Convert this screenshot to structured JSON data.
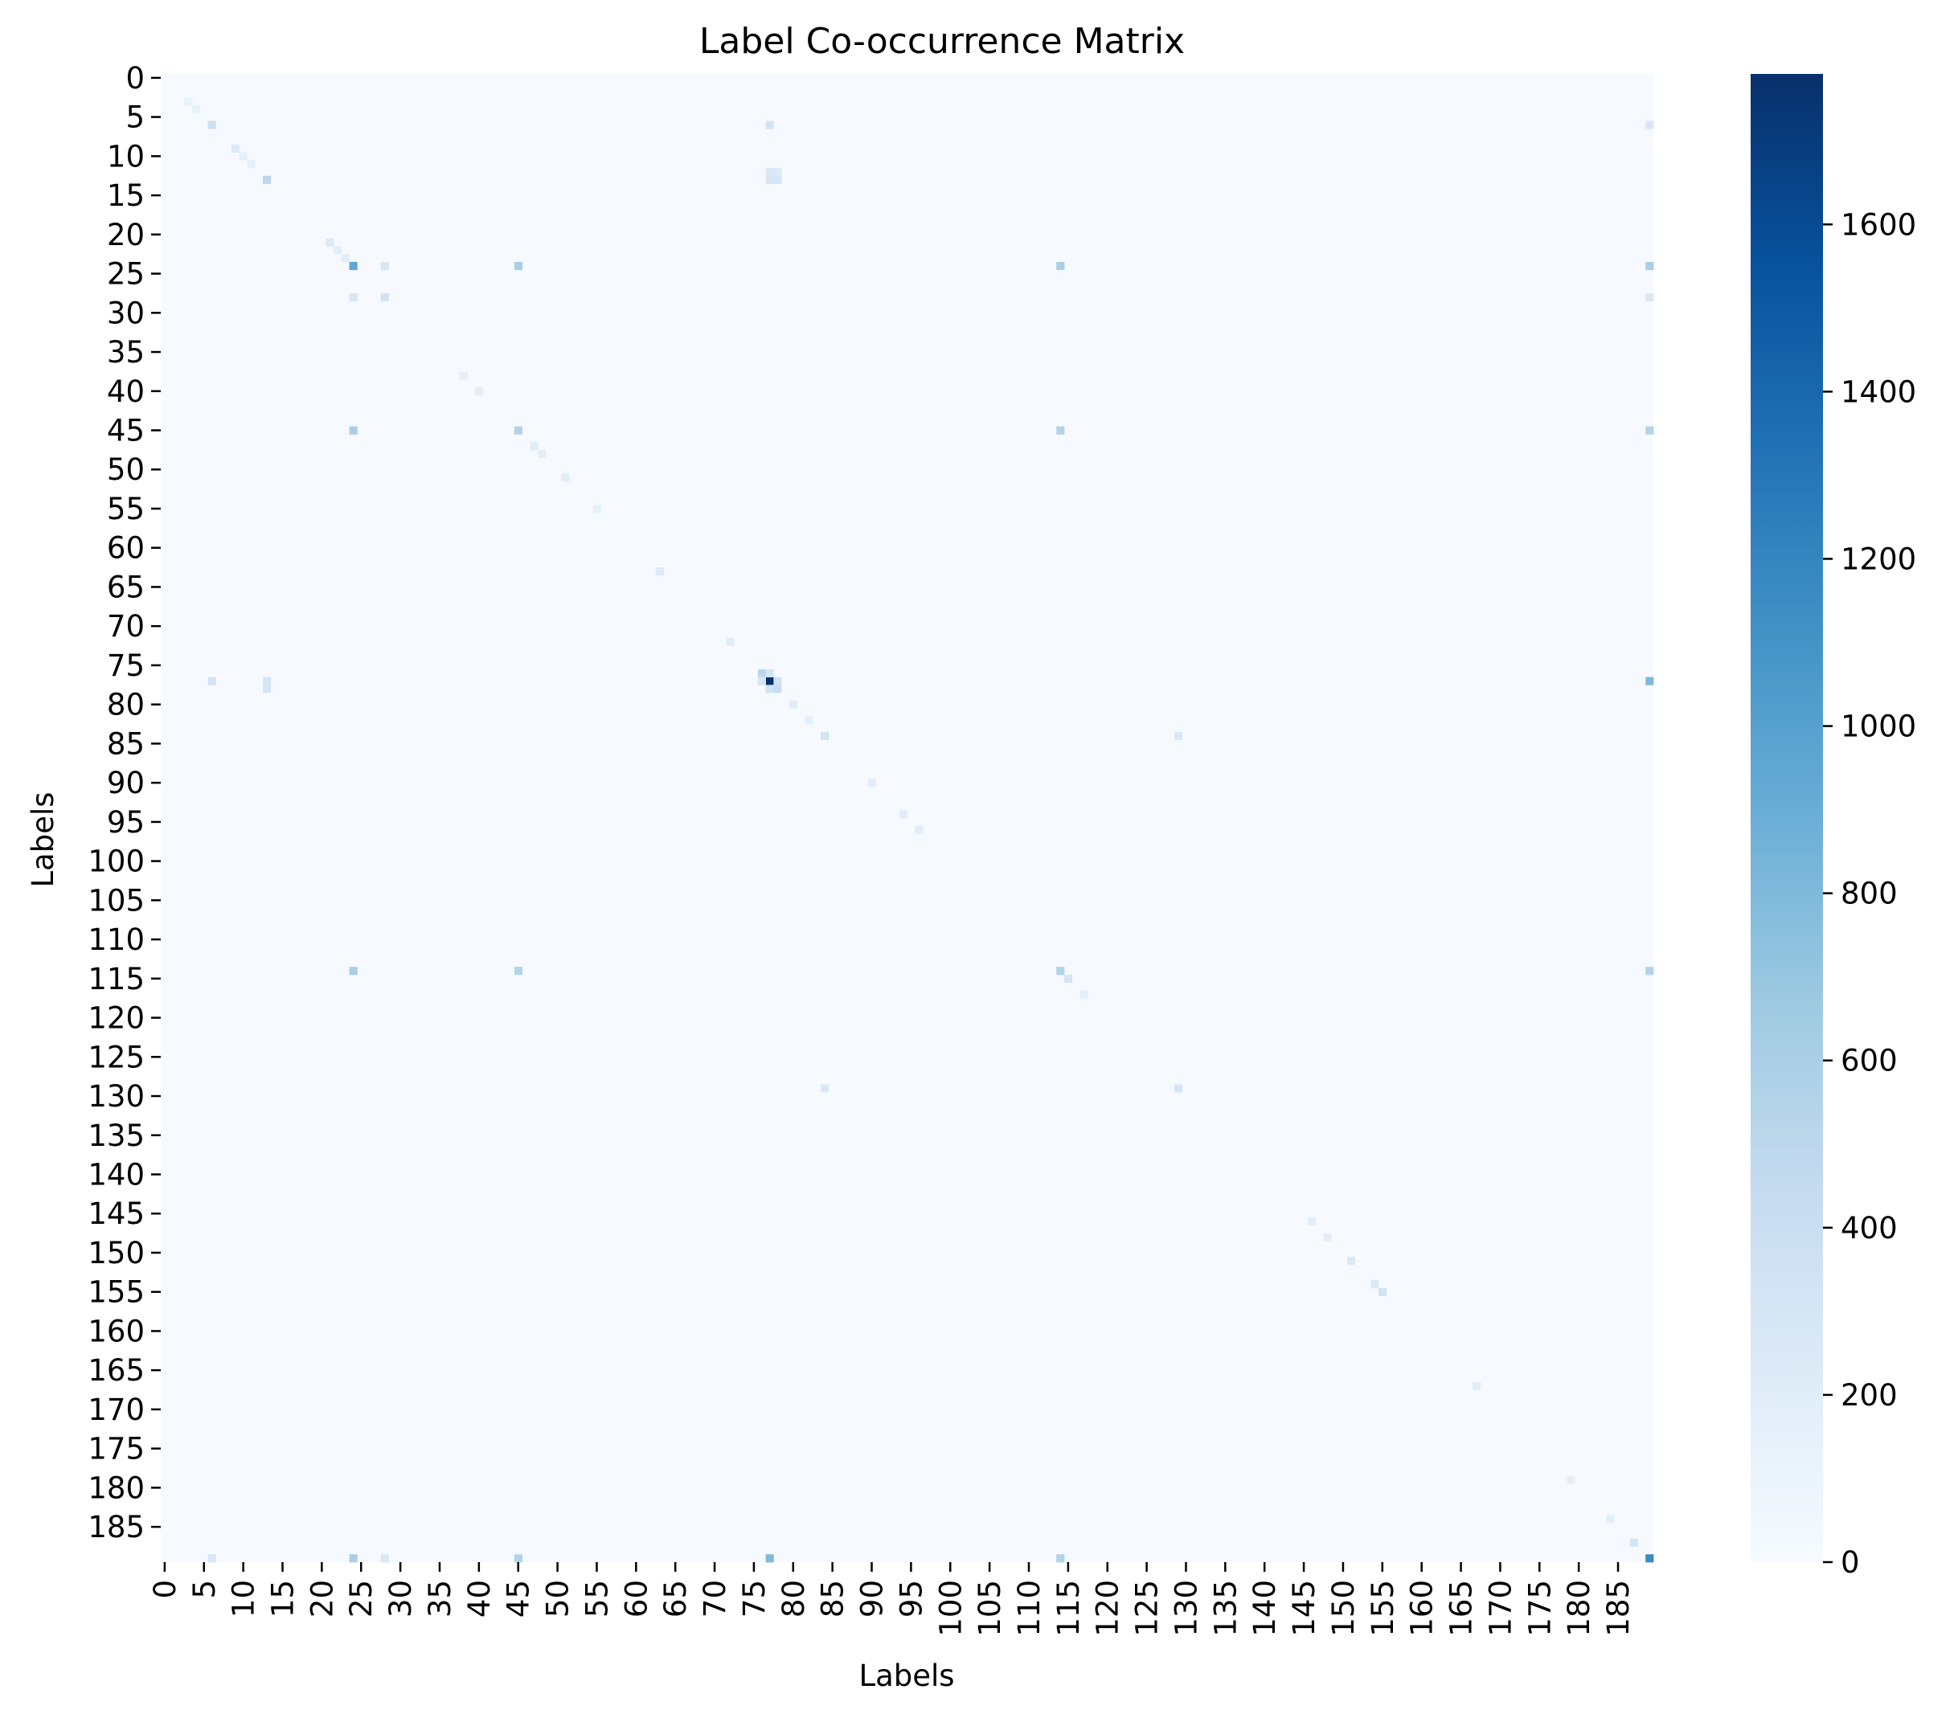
{
  "chart_data": {
    "type": "heatmap",
    "title": "Label Co-occurrence Matrix",
    "xlabel": "Labels",
    "ylabel": "Labels",
    "n_labels": 190,
    "tick_step": 5,
    "x_tick_labels": [
      "0",
      "5",
      "10",
      "15",
      "20",
      "25",
      "30",
      "35",
      "40",
      "45",
      "50",
      "55",
      "60",
      "65",
      "70",
      "75",
      "80",
      "85",
      "90",
      "95",
      "100",
      "105",
      "110",
      "115",
      "120",
      "125",
      "130",
      "135",
      "140",
      "145",
      "150",
      "155",
      "160",
      "165",
      "170",
      "175",
      "180",
      "185"
    ],
    "y_tick_labels": [
      "0",
      "5",
      "10",
      "15",
      "20",
      "25",
      "30",
      "35",
      "40",
      "45",
      "50",
      "55",
      "60",
      "65",
      "70",
      "75",
      "80",
      "85",
      "90",
      "95",
      "100",
      "105",
      "110",
      "115",
      "120",
      "125",
      "130",
      "135",
      "140",
      "145",
      "150",
      "155",
      "160",
      "165",
      "170",
      "175",
      "180",
      "185"
    ],
    "colormap": "Blues",
    "colormap_stops": [
      "#f7fbff",
      "#deebf7",
      "#c6dbef",
      "#9ecae1",
      "#6baed6",
      "#4292c6",
      "#2171b5",
      "#08519c",
      "#08306b"
    ],
    "colorbar": {
      "min": 0,
      "max": 1780,
      "ticks": [
        0,
        200,
        400,
        600,
        800,
        1000,
        1200,
        1400,
        1600
      ]
    },
    "background_value": 8,
    "cells": [
      {
        "row": 77,
        "col": 77,
        "value": 1780
      },
      {
        "row": 189,
        "col": 189,
        "value": 1150
      },
      {
        "row": 24,
        "col": 24,
        "value": 950
      },
      {
        "row": 77,
        "col": 189,
        "value": 800
      },
      {
        "row": 189,
        "col": 77,
        "value": 800
      },
      {
        "row": 24,
        "col": 45,
        "value": 600
      },
      {
        "row": 45,
        "col": 24,
        "value": 600
      },
      {
        "row": 24,
        "col": 114,
        "value": 600
      },
      {
        "row": 114,
        "col": 24,
        "value": 600
      },
      {
        "row": 24,
        "col": 189,
        "value": 600
      },
      {
        "row": 189,
        "col": 24,
        "value": 600
      },
      {
        "row": 45,
        "col": 45,
        "value": 550
      },
      {
        "row": 45,
        "col": 114,
        "value": 550
      },
      {
        "row": 114,
        "col": 45,
        "value": 550
      },
      {
        "row": 45,
        "col": 189,
        "value": 550
      },
      {
        "row": 189,
        "col": 45,
        "value": 550
      },
      {
        "row": 114,
        "col": 114,
        "value": 550
      },
      {
        "row": 114,
        "col": 189,
        "value": 550
      },
      {
        "row": 189,
        "col": 114,
        "value": 550
      },
      {
        "row": 76,
        "col": 76,
        "value": 500
      },
      {
        "row": 13,
        "col": 13,
        "value": 500
      },
      {
        "row": 78,
        "col": 78,
        "value": 420
      },
      {
        "row": 76,
        "col": 77,
        "value": 300
      },
      {
        "row": 77,
        "col": 76,
        "value": 300
      },
      {
        "row": 77,
        "col": 78,
        "value": 350
      },
      {
        "row": 78,
        "col": 77,
        "value": 350
      },
      {
        "row": 13,
        "col": 77,
        "value": 300
      },
      {
        "row": 77,
        "col": 13,
        "value": 300
      },
      {
        "row": 13,
        "col": 78,
        "value": 300
      },
      {
        "row": 78,
        "col": 13,
        "value": 300
      },
      {
        "row": 12,
        "col": 77,
        "value": 250
      },
      {
        "row": 12,
        "col": 78,
        "value": 250
      },
      {
        "row": 6,
        "col": 6,
        "value": 380
      },
      {
        "row": 6,
        "col": 77,
        "value": 330
      },
      {
        "row": 77,
        "col": 6,
        "value": 330
      },
      {
        "row": 6,
        "col": 189,
        "value": 280
      },
      {
        "row": 189,
        "col": 6,
        "value": 280
      },
      {
        "row": 28,
        "col": 28,
        "value": 350
      },
      {
        "row": 24,
        "col": 28,
        "value": 300
      },
      {
        "row": 28,
        "col": 24,
        "value": 300
      },
      {
        "row": 28,
        "col": 189,
        "value": 260
      },
      {
        "row": 189,
        "col": 28,
        "value": 260
      },
      {
        "row": 84,
        "col": 84,
        "value": 320
      },
      {
        "row": 84,
        "col": 129,
        "value": 260
      },
      {
        "row": 129,
        "col": 84,
        "value": 260
      },
      {
        "row": 129,
        "col": 129,
        "value": 300
      },
      {
        "row": 155,
        "col": 155,
        "value": 330
      },
      {
        "row": 154,
        "col": 154,
        "value": 250
      },
      {
        "row": 151,
        "col": 151,
        "value": 240
      },
      {
        "row": 115,
        "col": 115,
        "value": 300
      },
      {
        "row": 187,
        "col": 187,
        "value": 310
      },
      {
        "row": 9,
        "col": 9,
        "value": 240
      },
      {
        "row": 10,
        "col": 10,
        "value": 160
      },
      {
        "row": 11,
        "col": 11,
        "value": 160
      },
      {
        "row": 21,
        "col": 21,
        "value": 230
      },
      {
        "row": 22,
        "col": 22,
        "value": 200
      },
      {
        "row": 23,
        "col": 23,
        "value": 200
      },
      {
        "row": 38,
        "col": 38,
        "value": 180
      },
      {
        "row": 40,
        "col": 40,
        "value": 200
      },
      {
        "row": 47,
        "col": 47,
        "value": 190
      },
      {
        "row": 48,
        "col": 48,
        "value": 180
      },
      {
        "row": 51,
        "col": 51,
        "value": 190
      },
      {
        "row": 55,
        "col": 55,
        "value": 170
      },
      {
        "row": 63,
        "col": 63,
        "value": 230
      },
      {
        "row": 72,
        "col": 72,
        "value": 200
      },
      {
        "row": 80,
        "col": 80,
        "value": 200
      },
      {
        "row": 82,
        "col": 82,
        "value": 170
      },
      {
        "row": 90,
        "col": 90,
        "value": 180
      },
      {
        "row": 94,
        "col": 94,
        "value": 200
      },
      {
        "row": 96,
        "col": 96,
        "value": 200
      },
      {
        "row": 117,
        "col": 117,
        "value": 160
      },
      {
        "row": 146,
        "col": 146,
        "value": 200
      },
      {
        "row": 148,
        "col": 148,
        "value": 180
      },
      {
        "row": 167,
        "col": 167,
        "value": 200
      },
      {
        "row": 179,
        "col": 179,
        "value": 160
      },
      {
        "row": 184,
        "col": 184,
        "value": 180
      },
      {
        "row": 3,
        "col": 3,
        "value": 130
      },
      {
        "row": 4,
        "col": 4,
        "value": 130
      }
    ]
  }
}
